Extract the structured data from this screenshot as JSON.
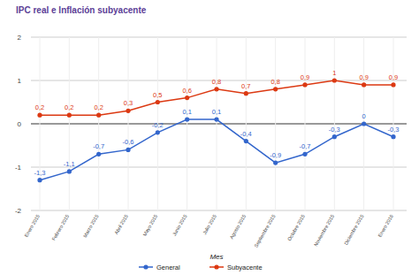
{
  "chart_data": {
    "type": "line",
    "title": "IPC real e Inflación subyacente",
    "x_label": "Mes",
    "categories": [
      "Enero 2015",
      "Febrero 2015",
      "Marzo 2015",
      "Abril 2015",
      "Mayo 2015",
      "Junio 2015",
      "Julio 2015",
      "Agosto 2015",
      "Septiembre 2015",
      "Octubre 2015",
      "Noviembre 2015",
      "Diciembre 2015",
      "Enero 2016"
    ],
    "series": [
      {
        "name": "General",
        "color": "#3366cc",
        "marker": "circle",
        "values": [
          -1.3,
          -1.1,
          -0.7,
          -0.6,
          -0.2,
          0.1,
          0.1,
          -0.4,
          -0.9,
          -0.7,
          -0.3,
          0,
          -0.3
        ],
        "value_labels": [
          "-1,3",
          "-1,1",
          "-0,7",
          "-0,6",
          "-0,2",
          "0,1",
          "0,1",
          "-0,4",
          "-0,9",
          "-0,7",
          "-0,3",
          "0",
          "-0,3"
        ]
      },
      {
        "name": "Subyacente",
        "color": "#dc3912",
        "marker": "circle",
        "values": [
          0.2,
          0.2,
          0.2,
          0.3,
          0.5,
          0.6,
          0.8,
          0.7,
          0.8,
          0.9,
          1,
          0.9,
          0.9
        ],
        "value_labels": [
          "0,2",
          "0,2",
          "0,2",
          "0,3",
          "0,5",
          "0,6",
          "0,8",
          "0,7",
          "0,8",
          "0,9",
          "1",
          "0,9",
          "0,9"
        ]
      }
    ],
    "ylim": [
      -2,
      2
    ],
    "yticks": [
      -2,
      -1,
      0,
      1,
      2
    ],
    "grid": true,
    "legend": "bottom",
    "data_labels": true
  }
}
